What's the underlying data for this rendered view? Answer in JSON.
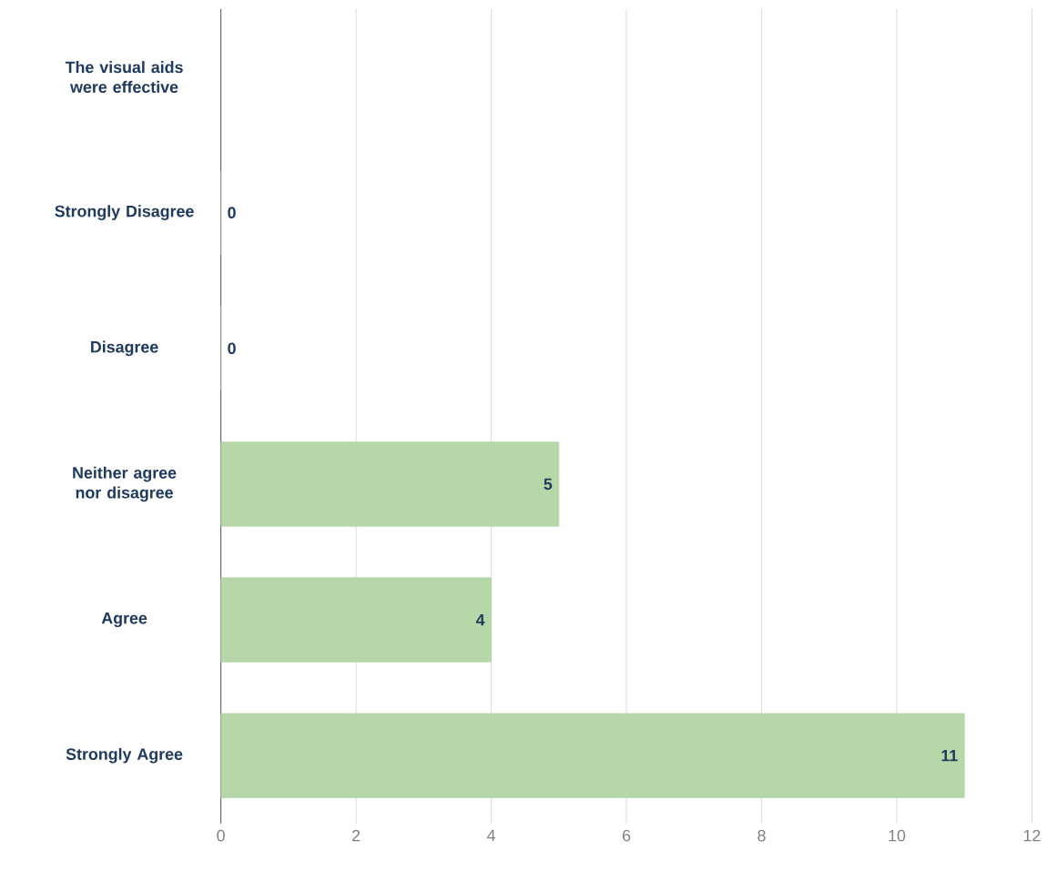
{
  "chart_data": {
    "type": "bar",
    "orientation": "horizontal",
    "categories": [
      "The visual aids were effective",
      "Strongly Disagree",
      "Disagree",
      "Neither agree nor disagree",
      "Agree",
      "Strongly Agree"
    ],
    "values": [
      null,
      0,
      0,
      5,
      4,
      11
    ],
    "value_labels": [
      null,
      "0",
      "0",
      "5",
      "4",
      "11"
    ],
    "color": "#b6d7a8",
    "xlim": [
      0,
      12
    ],
    "xticks": [
      0,
      2,
      4,
      6,
      8,
      10,
      12
    ],
    "grid": "x"
  }
}
